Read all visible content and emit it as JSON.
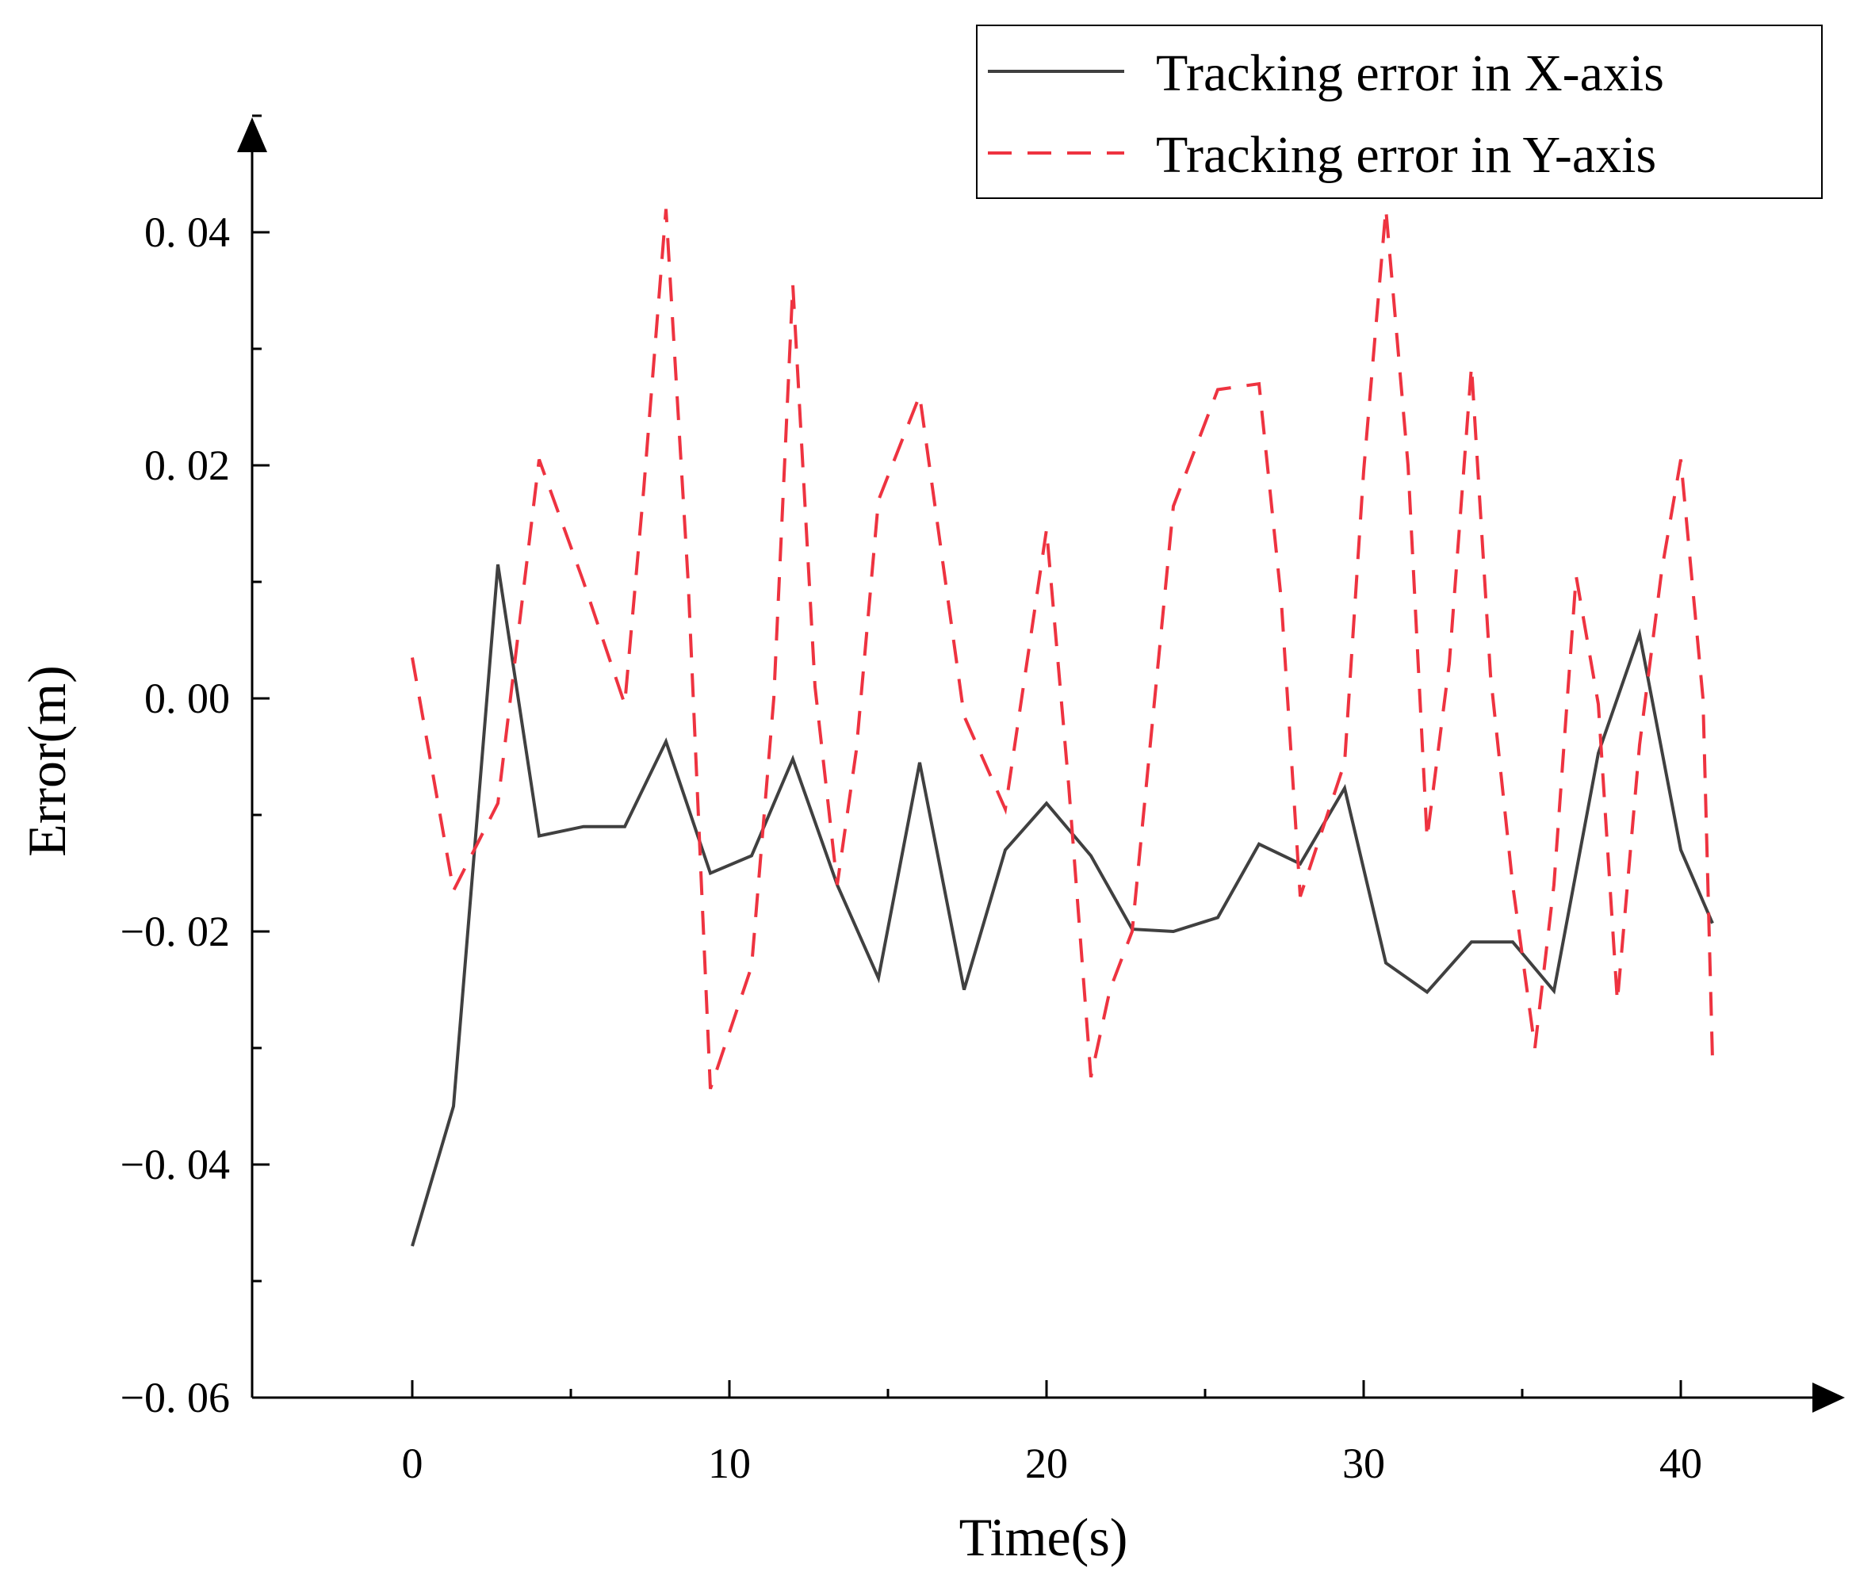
{
  "chart_data": {
    "type": "line",
    "title": "",
    "xlabel": "Time(s)",
    "ylabel": "Error(m)",
    "xlim": [
      -5,
      44
    ],
    "ylim": [
      -0.06,
      0.05
    ],
    "x_ticks": [
      0,
      10,
      20,
      30,
      40
    ],
    "x_tick_labels": [
      "0",
      "10",
      "20",
      "30",
      "40"
    ],
    "y_ticks": [
      -0.06,
      -0.04,
      -0.02,
      0.0,
      0.02,
      0.04
    ],
    "y_tick_labels": [
      "−0. 06",
      "−0. 04",
      "−0. 02",
      "0. 00",
      "0. 02",
      "0. 04"
    ],
    "grid": false,
    "legend_position": "top-right",
    "series": [
      {
        "name": "Tracking error in X-axis",
        "color": "#404040",
        "dash": "solid",
        "x": [
          0,
          1.3,
          2.7,
          4.0,
          5.4,
          6.7,
          8.0,
          9.4,
          10.7,
          12.0,
          13.4,
          14.7,
          16.0,
          17.4,
          18.7,
          20.0,
          21.4,
          22.7,
          24.0,
          25.4,
          26.7,
          28.0,
          29.4,
          30.7,
          32.0,
          33.4,
          34.7,
          36.0,
          37.4,
          38.7,
          40.0,
          41.0
        ],
        "y": [
          -0.047,
          -0.035,
          0.0115,
          -0.0118,
          -0.011,
          -0.011,
          -0.0037,
          -0.015,
          -0.0135,
          -0.0052,
          -0.016,
          -0.024,
          -0.0055,
          -0.025,
          -0.013,
          -0.009,
          -0.0135,
          -0.0198,
          -0.02,
          -0.0188,
          -0.0125,
          -0.0142,
          -0.0077,
          -0.0227,
          -0.0252,
          -0.0209,
          -0.0209,
          -0.0251,
          -0.0047,
          0.0055,
          -0.013,
          -0.0193
        ]
      },
      {
        "name": "Tracking error in Y-axis",
        "color": "#ee3340",
        "dash": "dashed",
        "x": [
          0,
          1.3,
          2.7,
          4.0,
          5.4,
          6.7,
          7.3,
          8.0,
          8.7,
          9.4,
          10.7,
          11.4,
          12.0,
          12.7,
          13.4,
          14.0,
          14.7,
          16.0,
          17.4,
          18.7,
          20.0,
          20.7,
          21.4,
          22.0,
          22.7,
          24.0,
          25.4,
          26.7,
          27.4,
          28.0,
          29.4,
          30.0,
          30.7,
          31.4,
          32.0,
          32.7,
          33.4,
          34.0,
          34.7,
          35.4,
          36.0,
          36.7,
          37.4,
          38.0,
          38.7,
          39.4,
          40.0,
          40.7,
          41.0
        ],
        "y": [
          0.0035,
          -0.0165,
          -0.009,
          0.0205,
          0.01,
          -0.0005,
          0.018,
          0.042,
          0.01,
          -0.0335,
          -0.023,
          0.0,
          0.0355,
          0.001,
          -0.016,
          -0.0045,
          0.017,
          0.026,
          -0.0015,
          -0.0095,
          0.0145,
          -0.0075,
          -0.0325,
          -0.025,
          -0.02,
          0.0165,
          0.0265,
          0.027,
          0.0085,
          -0.017,
          -0.0055,
          0.0195,
          0.042,
          0.02,
          -0.012,
          0.003,
          0.0285,
          0.002,
          -0.016,
          -0.03,
          -0.016,
          0.0105,
          -0.0005,
          -0.026,
          -0.004,
          0.011,
          0.0205,
          0.0,
          -0.031
        ]
      }
    ]
  }
}
